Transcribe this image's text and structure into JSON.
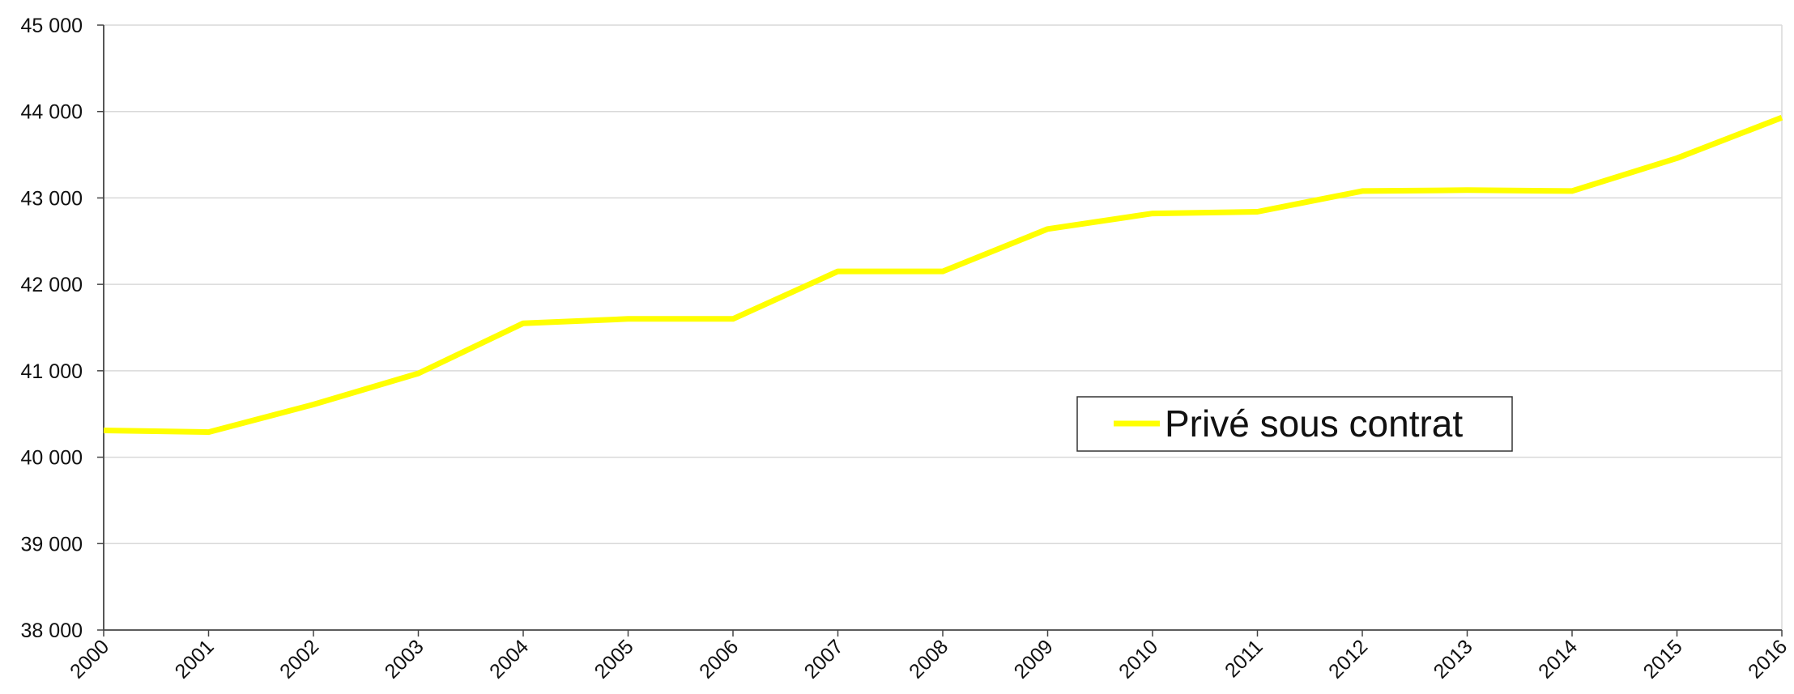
{
  "chart_data": {
    "type": "line",
    "title": "",
    "xlabel": "",
    "ylabel": "",
    "x": [
      "2000",
      "2001",
      "2002",
      "2003",
      "2004",
      "2005",
      "2006",
      "2007",
      "2008",
      "2009",
      "2010",
      "2011",
      "2012",
      "2013",
      "2014",
      "2015",
      "2016"
    ],
    "series": [
      {
        "name": "Privé sous contrat",
        "color": "#ffff00",
        "values": [
          40310,
          40290,
          40610,
          40970,
          41550,
          41600,
          41600,
          42150,
          42150,
          42640,
          42820,
          42840,
          43080,
          43090,
          43080,
          43460,
          43930
        ]
      }
    ],
    "ylim": [
      38000,
      45000
    ],
    "yticks": [
      38000,
      39000,
      40000,
      41000,
      42000,
      43000,
      44000,
      45000
    ],
    "ytick_labels": [
      "38 000",
      "39 000",
      "40 000",
      "41 000",
      "42 000",
      "43 000",
      "44 000",
      "45 000"
    ],
    "grid": true,
    "legend_position": "center-right"
  }
}
